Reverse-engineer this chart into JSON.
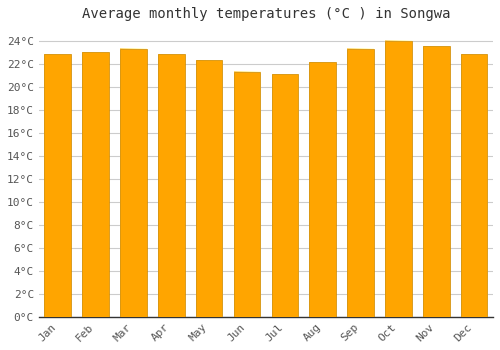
{
  "title": "Average monthly temperatures (°C ) in Songwa",
  "months": [
    "Jan",
    "Feb",
    "Mar",
    "Apr",
    "May",
    "Jun",
    "Jul",
    "Aug",
    "Sep",
    "Oct",
    "Nov",
    "Dec"
  ],
  "values": [
    22.8,
    23.0,
    23.3,
    22.8,
    22.3,
    21.3,
    21.1,
    22.1,
    23.3,
    24.0,
    23.5,
    22.8
  ],
  "bar_color": "#FFA500",
  "bar_color_light": "#FFD580",
  "bar_edge_color": "#CC8800",
  "background_color": "#FFFFFF",
  "plot_bg_color": "#FFFFFF",
  "grid_color": "#CCCCCC",
  "ylim": [
    0,
    25
  ],
  "yticks": [
    0,
    2,
    4,
    6,
    8,
    10,
    12,
    14,
    16,
    18,
    20,
    22,
    24
  ],
  "title_fontsize": 10,
  "tick_fontsize": 8,
  "title_color": "#333333",
  "tick_color": "#555555",
  "bar_width": 0.7
}
